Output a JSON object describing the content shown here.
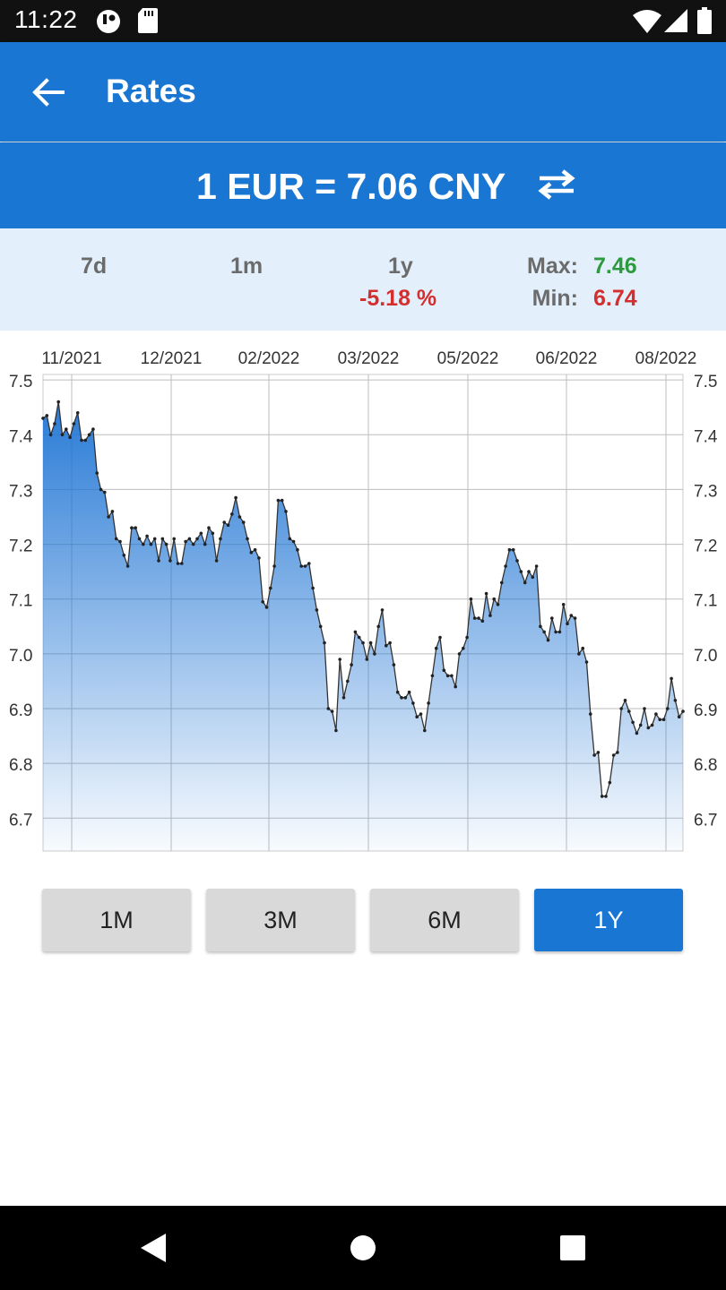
{
  "status_bar": {
    "time": "11:22",
    "icons": [
      "notification-icon",
      "sd-card-icon",
      "wifi-icon",
      "signal-icon",
      "battery-icon"
    ]
  },
  "app_bar": {
    "title": "Rates",
    "back_icon": "arrow-back-icon"
  },
  "rate": {
    "text": "1 EUR = 7.06 CNY",
    "swap_icon": "swap-icon"
  },
  "stats": {
    "period_7d": "7d",
    "period_1m": "1m",
    "period_1y": "1y",
    "change_1y": "-5.18 %",
    "max_label": "Max:",
    "max_value": "7.46",
    "min_label": "Min:",
    "min_value": "6.74"
  },
  "range_buttons": [
    {
      "label": "1M",
      "active": false
    },
    {
      "label": "3M",
      "active": false
    },
    {
      "label": "6M",
      "active": false
    },
    {
      "label": "1Y",
      "active": true
    }
  ],
  "colors": {
    "primary": "#1976d2",
    "stats_background": "#e3f0fb",
    "positive": "#2e9a3e",
    "negative": "#d32f2f"
  },
  "chart_data": {
    "type": "area",
    "ylim": [
      6.7,
      7.5
    ],
    "yticks": [
      "7.5",
      "7.4",
      "7.3",
      "7.2",
      "7.1",
      "7.0",
      "6.9",
      "6.8",
      "6.7"
    ],
    "xticks": [
      "11/2021",
      "12/2021",
      "02/2022",
      "03/2022",
      "05/2022",
      "06/2022",
      "08/2022"
    ],
    "grid": true,
    "series": [
      {
        "values": [
          7.43,
          7.435,
          7.4,
          7.42,
          7.46,
          7.4,
          7.41,
          7.395,
          7.42,
          7.44,
          7.39,
          7.39,
          7.4,
          7.41,
          7.33,
          7.3,
          7.295,
          7.25,
          7.26,
          7.21,
          7.205,
          7.18,
          7.16,
          7.23,
          7.23,
          7.21,
          7.2,
          7.215,
          7.2,
          7.21,
          7.17,
          7.21,
          7.2,
          7.17,
          7.21,
          7.165,
          7.165,
          7.205,
          7.21,
          7.2,
          7.21,
          7.22,
          7.2,
          7.23,
          7.22,
          7.17,
          7.21,
          7.24,
          7.235,
          7.255,
          7.285,
          7.25,
          7.24,
          7.21,
          7.185,
          7.19,
          7.175,
          7.095,
          7.085,
          7.12,
          7.16,
          7.28,
          7.28,
          7.26,
          7.21,
          7.205,
          7.19,
          7.16,
          7.16,
          7.165,
          7.12,
          7.08,
          7.05,
          7.02,
          6.9,
          6.895,
          6.86,
          6.99,
          6.92,
          6.95,
          6.98,
          7.04,
          7.03,
          7.02,
          6.99,
          7.02,
          7.0,
          7.05,
          7.08,
          7.015,
          7.02,
          6.98,
          6.93,
          6.92,
          6.92,
          6.93,
          6.91,
          6.885,
          6.89,
          6.86,
          6.91,
          6.96,
          7.01,
          7.03,
          6.97,
          6.96,
          6.96,
          6.94,
          7.0,
          7.01,
          7.03,
          7.1,
          7.065,
          7.065,
          7.06,
          7.11,
          7.07,
          7.1,
          7.09,
          7.13,
          7.16,
          7.19,
          7.19,
          7.17,
          7.15,
          7.13,
          7.15,
          7.14,
          7.16,
          7.05,
          7.04,
          7.025,
          7.065,
          7.04,
          7.04,
          7.09,
          7.055,
          7.07,
          7.065,
          7.0,
          7.01,
          6.985,
          6.89,
          6.815,
          6.82,
          6.74,
          6.74,
          6.765,
          6.815,
          6.82,
          6.9,
          6.915,
          6.895,
          6.875,
          6.855,
          6.87,
          6.9,
          6.865,
          6.87,
          6.89,
          6.88,
          6.88,
          6.9,
          6.955,
          6.915,
          6.885,
          6.895
        ]
      }
    ]
  }
}
